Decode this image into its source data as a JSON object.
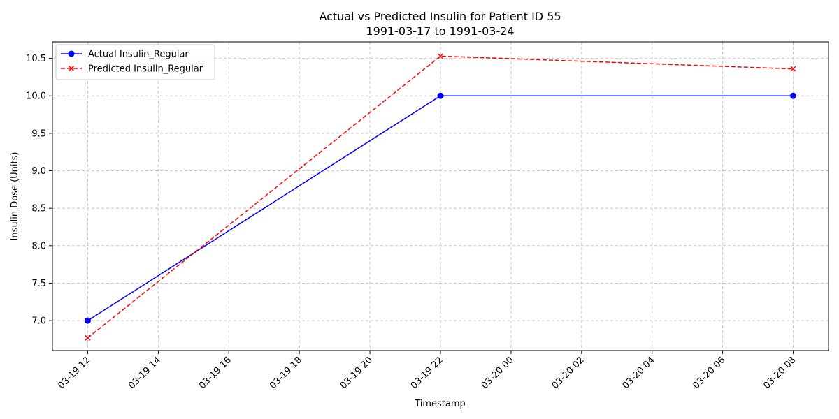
{
  "chart_data": {
    "type": "line",
    "title": "Actual vs Predicted Insulin for Patient ID 55",
    "subtitle": "1991-03-17 to 1991-03-24",
    "xlabel": "Timestamp",
    "ylabel": "Insulin Dose (Units)",
    "x_ticks": [
      "03-19 12",
      "03-19 14",
      "03-19 16",
      "03-19 18",
      "03-19 20",
      "03-19 22",
      "03-20 00",
      "03-20 02",
      "03-20 04",
      "03-20 06",
      "03-20 08"
    ],
    "x_tick_values": [
      "1991-03-19 12:00",
      "1991-03-19 14:00",
      "1991-03-19 16:00",
      "1991-03-19 18:00",
      "1991-03-19 20:00",
      "1991-03-19 22:00",
      "1991-03-20 00:00",
      "1991-03-20 02:00",
      "1991-03-20 04:00",
      "1991-03-20 06:00",
      "1991-03-20 08:00"
    ],
    "xlim": [
      "1991-03-19 11:00",
      "1991-03-20 09:00"
    ],
    "y_ticks": [
      "7.0",
      "7.5",
      "8.0",
      "8.5",
      "9.0",
      "9.5",
      "10.0",
      "10.5"
    ],
    "y_tick_values": [
      7.0,
      7.5,
      8.0,
      8.5,
      9.0,
      9.5,
      10.0,
      10.5
    ],
    "ylim": [
      6.6,
      10.72
    ],
    "grid": true,
    "legend_position": "top-left",
    "series": [
      {
        "name": "Actual Insulin_Regular",
        "color": "#0000ff",
        "line_style": "solid",
        "marker": "circle",
        "x": [
          "1991-03-19 12:00",
          "1991-03-19 22:00",
          "1991-03-20 08:00"
        ],
        "y": [
          7.0,
          10.0,
          10.0
        ]
      },
      {
        "name": "Predicted Insulin_Regular",
        "color": "#ff0000",
        "line_style": "dashed",
        "marker": "x",
        "x": [
          "1991-03-19 12:00",
          "1991-03-19 22:00",
          "1991-03-20 08:00"
        ],
        "y": [
          6.77,
          10.53,
          10.36
        ]
      }
    ]
  }
}
